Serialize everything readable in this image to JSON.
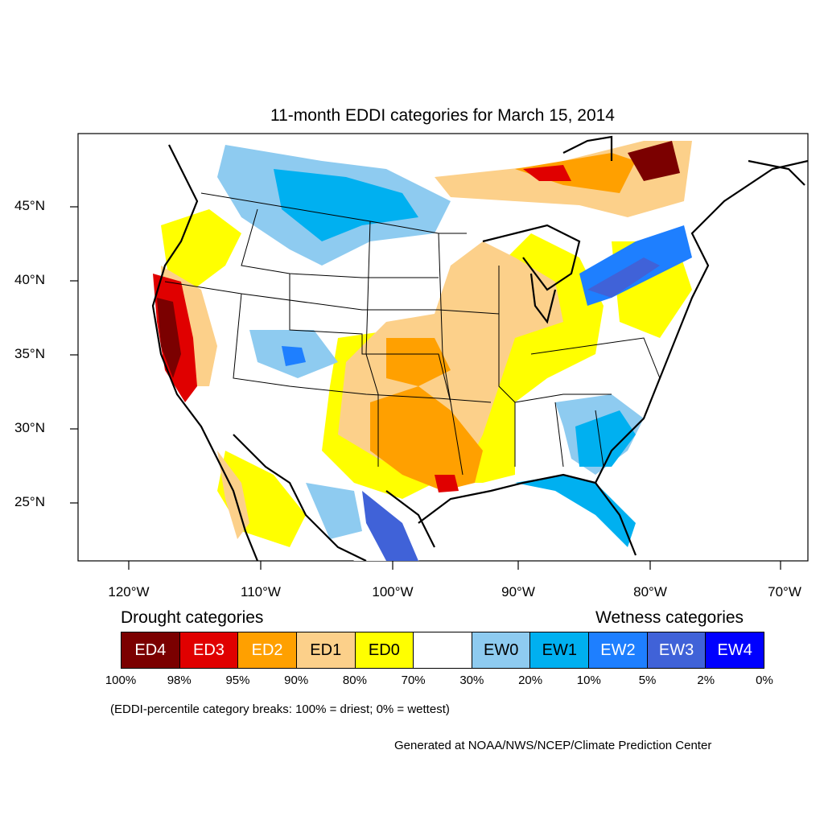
{
  "title": "11-month EDDI categories for March 15, 2014",
  "axes": {
    "lat_labels": [
      "45°N",
      "40°N",
      "35°N",
      "30°N",
      "25°N"
    ],
    "lon_labels": [
      "120°W",
      "110°W",
      "100°W",
      "90°W",
      "80°W",
      "70°W"
    ]
  },
  "legend": {
    "drought_heading": "Drought categories",
    "wetness_heading": "Wetness categories",
    "categories": [
      {
        "label": "ED4",
        "color": "#7b0000",
        "text_color": "#ffffff"
      },
      {
        "label": "ED3",
        "color": "#e00000",
        "text_color": "#ffffff"
      },
      {
        "label": "ED2",
        "color": "#ffa000",
        "text_color": "#ffffff"
      },
      {
        "label": "ED1",
        "color": "#fcd08a",
        "text_color": "#000000"
      },
      {
        "label": "ED0",
        "color": "#ffff00",
        "text_color": "#000000"
      },
      {
        "label": "",
        "color": "#ffffff",
        "text_color": "#000000"
      },
      {
        "label": "EW0",
        "color": "#8ecbf0",
        "text_color": "#000000"
      },
      {
        "label": "EW1",
        "color": "#00b0f0",
        "text_color": "#000000"
      },
      {
        "label": "EW2",
        "color": "#1e7fff",
        "text_color": "#ffffff"
      },
      {
        "label": "EW3",
        "color": "#4062d8",
        "text_color": "#ffffff"
      },
      {
        "label": "EW4",
        "color": "#0000ff",
        "text_color": "#ffffff"
      }
    ],
    "percent_breaks": [
      "100%",
      "98%",
      "95%",
      "90%",
      "80%",
      "70%",
      "30%",
      "20%",
      "10%",
      "5%",
      "2%",
      "0%"
    ]
  },
  "note": "(EDDI-percentile category breaks: 100% = driest; 0% = wettest)",
  "credit": "Generated at NOAA/NWS/NCEP/Climate Prediction Center"
}
